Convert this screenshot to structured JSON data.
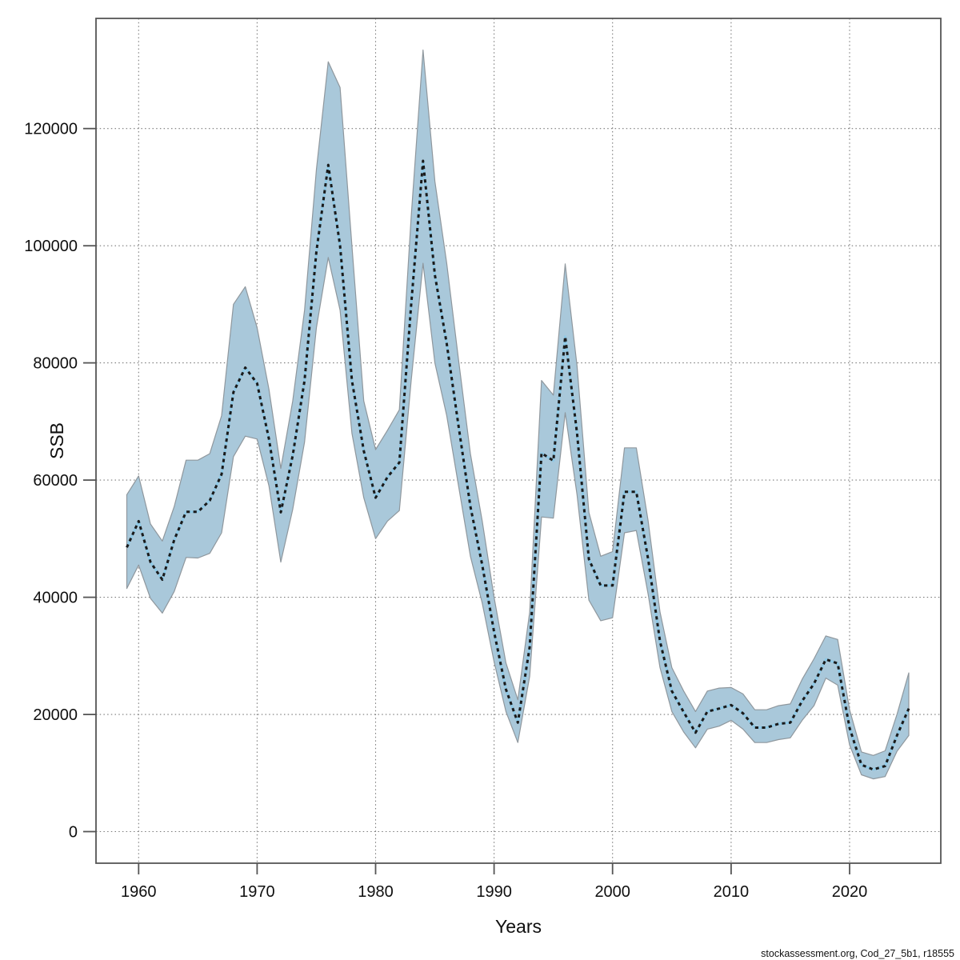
{
  "footer": {
    "text": "stockassessment.org, Cod_27_5b1, r18555"
  },
  "chart_data": {
    "type": "line",
    "title": "",
    "xlabel": "Years",
    "ylabel": "SSB",
    "grid": true,
    "legend": "none",
    "xlim": [
      1956.4,
      2027.7
    ],
    "ylim": [
      -5390,
      138800
    ],
    "x_ticks": [
      {
        "value": 1960,
        "label": "1960"
      },
      {
        "value": 1970,
        "label": "1970"
      },
      {
        "value": 1980,
        "label": "1980"
      },
      {
        "value": 1990,
        "label": "1990"
      },
      {
        "value": 2000,
        "label": "2000"
      },
      {
        "value": 2010,
        "label": "2010"
      },
      {
        "value": 2020,
        "label": "2020"
      }
    ],
    "y_ticks": [
      {
        "value": 0,
        "label": "0"
      },
      {
        "value": 20000,
        "label": "20000"
      },
      {
        "value": 40000,
        "label": "40000"
      },
      {
        "value": 60000,
        "label": "60000"
      },
      {
        "value": 80000,
        "label": "80000"
      },
      {
        "value": 100000,
        "label": "100000"
      },
      {
        "value": 120000,
        "label": "120000"
      }
    ],
    "years": [
      1959,
      1960,
      1961,
      1962,
      1963,
      1964,
      1965,
      1966,
      1967,
      1968,
      1969,
      1970,
      1971,
      1972,
      1973,
      1974,
      1975,
      1976,
      1977,
      1978,
      1979,
      1980,
      1981,
      1982,
      1983,
      1984,
      1985,
      1986,
      1987,
      1988,
      1989,
      1990,
      1991,
      1992,
      1993,
      1994,
      1995,
      1996,
      1997,
      1998,
      1999,
      2000,
      2001,
      2002,
      2003,
      2004,
      2005,
      2006,
      2007,
      2008,
      2009,
      2010,
      2011,
      2012,
      2013,
      2014,
      2015,
      2016,
      2017,
      2018,
      2019,
      2020,
      2021,
      2022,
      2023,
      2024,
      2025
    ],
    "series": [
      {
        "name": "SSB estimate",
        "values": [
          48500,
          53000,
          46000,
          43000,
          49800,
          54600,
          54600,
          56500,
          61000,
          75000,
          79200,
          76500,
          67000,
          54500,
          64200,
          77000,
          99000,
          113800,
          100000,
          77000,
          65000,
          57000,
          60500,
          63000,
          90000,
          114500,
          95000,
          83300,
          69200,
          55500,
          45500,
          34100,
          24300,
          18600,
          31500,
          64600,
          63300,
          84500,
          68000,
          46500,
          42000,
          42000,
          58000,
          58000,
          46500,
          32500,
          24000,
          20400,
          16900,
          20500,
          21000,
          21600,
          20200,
          17750,
          17750,
          18400,
          18600,
          22300,
          25250,
          29400,
          28700,
          17700,
          11400,
          10600,
          11200,
          16400,
          21000
        ]
      },
      {
        "name": "confidence lower",
        "values": [
          41500,
          45500,
          39800,
          37300,
          41000,
          46800,
          46700,
          47500,
          51000,
          64000,
          67500,
          67000,
          59000,
          46000,
          55000,
          66500,
          86000,
          98000,
          89000,
          68000,
          57000,
          50000,
          53000,
          54800,
          77000,
          97000,
          80000,
          71000,
          59000,
          47000,
          39000,
          29000,
          20500,
          15200,
          26500,
          53700,
          53500,
          71500,
          57500,
          39500,
          36000,
          36500,
          51000,
          51400,
          40500,
          28000,
          20500,
          17000,
          14300,
          17500,
          18000,
          19000,
          17500,
          15200,
          15200,
          15700,
          16000,
          19000,
          21500,
          26200,
          25000,
          14800,
          9700,
          9000,
          9400,
          13700,
          16400
        ]
      },
      {
        "name": "confidence upper",
        "values": [
          57500,
          60700,
          52500,
          49600,
          55500,
          63400,
          63400,
          64500,
          71000,
          90000,
          93000,
          86000,
          75500,
          62000,
          73500,
          89000,
          113000,
          131400,
          127000,
          100000,
          73500,
          65200,
          68500,
          72000,
          105000,
          133400,
          111000,
          97000,
          80500,
          64500,
          53000,
          40000,
          28800,
          22500,
          37500,
          77000,
          74500,
          96900,
          79500,
          54500,
          47000,
          47800,
          65500,
          65500,
          53000,
          37500,
          28000,
          24000,
          20500,
          24000,
          24500,
          24600,
          23500,
          20800,
          20800,
          21500,
          21800,
          26000,
          29500,
          33400,
          32800,
          20800,
          13600,
          13000,
          13800,
          20000,
          27100
        ]
      }
    ],
    "colors": {
      "band": "#a9c8da",
      "band_edge": "#8f979d",
      "line": "#1a1a1a",
      "line_underlay": "#8fc9e6",
      "grid": "#7a7a7a",
      "frame": "#555555"
    }
  }
}
